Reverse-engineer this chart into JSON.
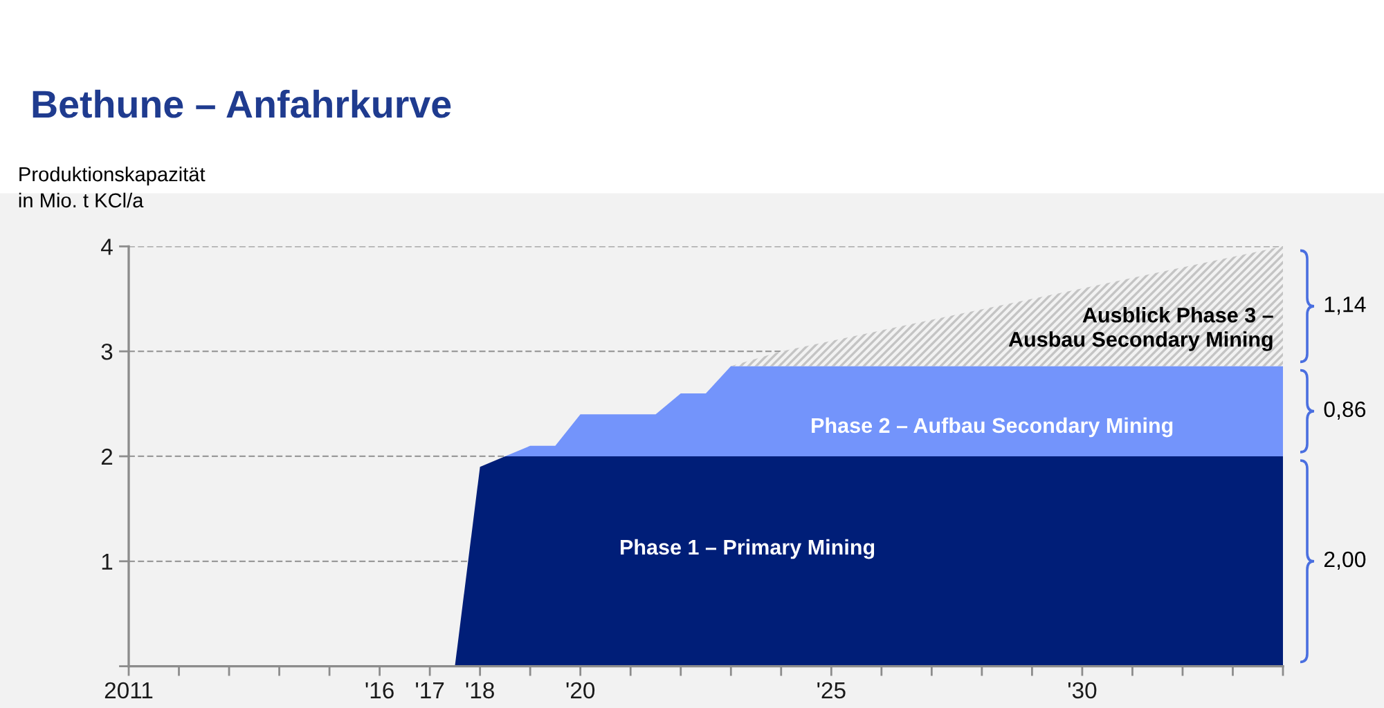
{
  "chart_data": {
    "type": "area",
    "title": "Bethune – Anfahrkurve",
    "ylabel": "Produktionskapazität\nin Mio. t KCl/a",
    "stacked": true,
    "x": [
      2017.5,
      2018,
      2018.5,
      2019,
      2019.5,
      2020,
      2021.5,
      2022,
      2022.5,
      2023,
      2024,
      2034
    ],
    "series": [
      {
        "name": "Phase 1 – Primary Mining",
        "color": "#001e78",
        "values": [
          0,
          1.9,
          2,
          2,
          2,
          2,
          2,
          2,
          2,
          2,
          2,
          2
        ]
      },
      {
        "name": "Phase 2 – Aufbau Secondary Mining",
        "color": "#7394fb",
        "values": [
          0,
          0,
          0,
          0.1,
          0.1,
          0.4,
          0.4,
          0.6,
          0.6,
          0.86,
          0.86,
          0.86
        ]
      },
      {
        "name": "Ausblick Phase 3 –\nAusbau Secondary Mining",
        "color": "#c4c4c4",
        "values": [
          0,
          0,
          0,
          0,
          0,
          0,
          0,
          0,
          0,
          0,
          0.14,
          1.14
        ]
      }
    ],
    "annotations": [
      "2,00",
      "0,86",
      "1,14"
    ],
    "xlim": [
      2011,
      2034
    ],
    "ylim": [
      0,
      4
    ],
    "xticks": [
      {
        "value": 2011,
        "label": "2011"
      },
      {
        "value": 2012,
        "label": null
      },
      {
        "value": 2013,
        "label": null
      },
      {
        "value": 2014,
        "label": null
      },
      {
        "value": 2015,
        "label": null
      },
      {
        "value": 2016,
        "label": "'16"
      },
      {
        "value": 2017,
        "label": "'17"
      },
      {
        "value": 2018,
        "label": "'18"
      },
      {
        "value": 2019,
        "label": null
      },
      {
        "value": 2020,
        "label": "'20"
      },
      {
        "value": 2021,
        "label": null
      },
      {
        "value": 2022,
        "label": null
      },
      {
        "value": 2023,
        "label": null
      },
      {
        "value": 2024,
        "label": null
      },
      {
        "value": 2025,
        "label": "'25"
      },
      {
        "value": 2026,
        "label": null
      },
      {
        "value": 2027,
        "label": null
      },
      {
        "value": 2028,
        "label": null
      },
      {
        "value": 2029,
        "label": null
      },
      {
        "value": 2030,
        "label": "'30"
      },
      {
        "value": 2031,
        "label": null
      },
      {
        "value": 2032,
        "label": null
      },
      {
        "value": 2033,
        "label": null
      },
      {
        "value": 2034,
        "label": null
      }
    ],
    "yticks": [
      {
        "value": 0,
        "label": null
      },
      1,
      2,
      3,
      4
    ],
    "grid": "y"
  }
}
